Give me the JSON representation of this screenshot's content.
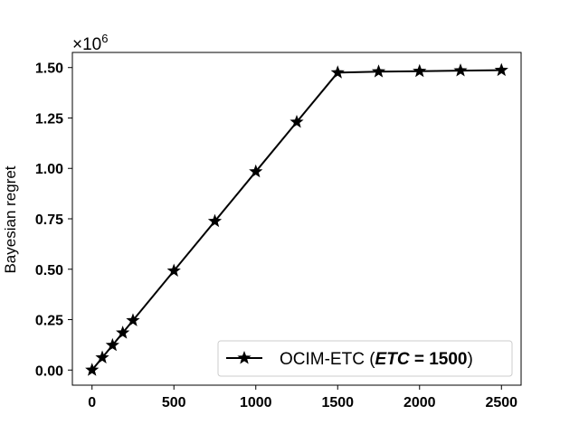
{
  "chart_data": {
    "type": "line",
    "title": "",
    "xlabel": "",
    "ylabel": "Bayesian regret",
    "y_multiplier": "×10",
    "y_multiplier_exp": "6",
    "xlim": [
      -120,
      2620
    ],
    "ylim": [
      -0.075,
      1.575
    ],
    "x_ticks": [
      0,
      500,
      1000,
      1500,
      2000,
      2500
    ],
    "y_ticks": [
      0.0,
      0.25,
      0.5,
      0.75,
      1.0,
      1.25,
      1.5
    ],
    "x_tick_labels": [
      "0",
      "500",
      "1000",
      "1500",
      "2000",
      "2500"
    ],
    "y_tick_labels": [
      "0.00",
      "0.25",
      "0.50",
      "0.75",
      "1.00",
      "1.25",
      "1.50"
    ],
    "grid": false,
    "legend_position": "bottom-right",
    "series": [
      {
        "name": "OCIM-ETC (ETC = 1500)",
        "legend_parts": [
          "OCIM-ETC (",
          "ETC",
          " = 1500",
          ")"
        ],
        "color": "#000000",
        "marker": "star",
        "x": [
          0,
          62.5,
          125,
          187.5,
          250,
          500,
          750,
          1000,
          1250,
          1500,
          1750,
          2000,
          2250,
          2500
        ],
        "y": [
          0.0,
          0.0615,
          0.123,
          0.1845,
          0.246,
          0.492,
          0.738,
          0.984,
          1.23,
          1.475,
          1.48,
          1.482,
          1.485,
          1.487
        ]
      }
    ]
  }
}
